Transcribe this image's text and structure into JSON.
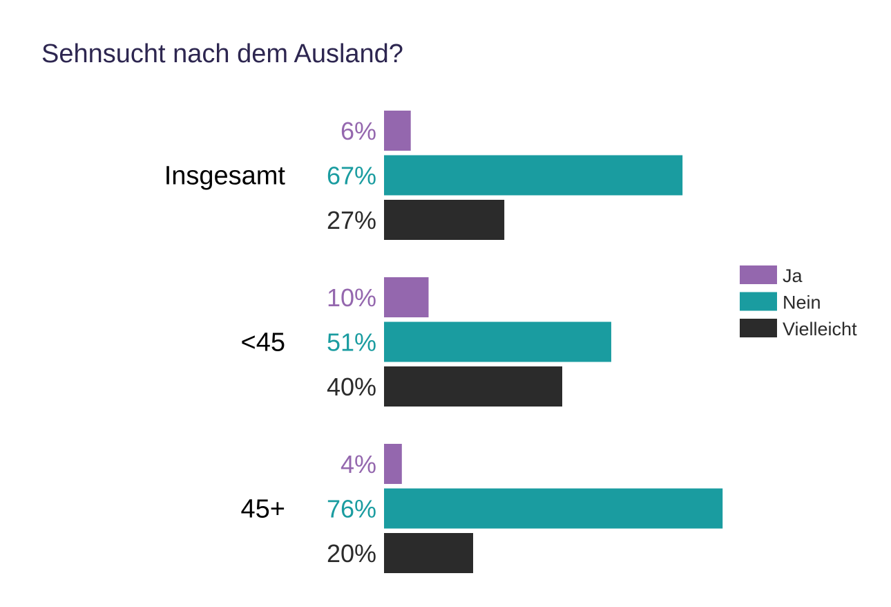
{
  "chart_data": {
    "type": "bar",
    "orientation": "horizontal",
    "title": "Sehnsucht nach dem Ausland?",
    "categories": [
      "Insgesamt",
      "<45",
      "45+"
    ],
    "series": [
      {
        "name": "Ja",
        "color": "#9467ae",
        "values": [
          6,
          10,
          4
        ],
        "labels": [
          "6%",
          "10%",
          "4%"
        ]
      },
      {
        "name": "Nein",
        "color": "#1a9ca0",
        "values": [
          67,
          51,
          76
        ],
        "labels": [
          "67%",
          "51%",
          "76%"
        ]
      },
      {
        "name": "Vielleicht",
        "color": "#2b2b2b",
        "values": [
          27,
          40,
          20
        ],
        "labels": [
          "27%",
          "40%",
          "20%"
        ]
      }
    ],
    "unit": "%",
    "legend_position": "right",
    "grid": false,
    "title_color": "#2d2650"
  }
}
